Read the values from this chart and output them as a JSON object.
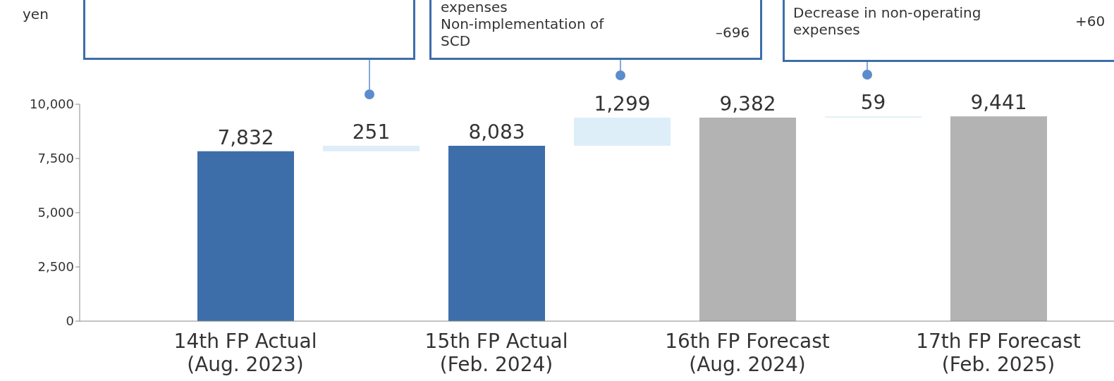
{
  "chart_data": {
    "type": "bar",
    "categories": [
      "14th FP Actual\n(Aug. 2023)",
      null,
      "15th FP Actual\n(Feb. 2024)",
      null,
      "16th FP Forecast\n(Aug. 2024)",
      null,
      "17th FP Forecast\n(Feb. 2025)"
    ],
    "values": [
      7832,
      251,
      8083,
      1299,
      9382,
      59,
      9441
    ],
    "base": [
      0,
      7832,
      0,
      8083,
      0,
      9382,
      0
    ],
    "colors": [
      "#3d6eaa",
      "#ddeef9",
      "#3d6eaa",
      "#ddeef9",
      "#b3b3b3",
      "#ddeef9",
      "#b3b3b3"
    ],
    "ylim": [
      0,
      10000
    ],
    "yticks": [
      {
        "value": 0,
        "label": "0"
      },
      {
        "value": 2500,
        "label": "2,500"
      },
      {
        "value": 5000,
        "label": "5,000"
      },
      {
        "value": 7500,
        "label": "7,500"
      },
      {
        "value": 10000,
        "label": "10,000"
      }
    ],
    "value_labels": [
      "7,832",
      "251",
      "8,083",
      "1,299",
      "9,382",
      "59",
      "9,441"
    ],
    "grid": false,
    "legend": false,
    "annotations": [
      "yen",
      "expenses",
      "Non-implementation of SCD",
      "–696",
      "Decrease in non-operating expenses",
      "+60"
    ]
  }
}
